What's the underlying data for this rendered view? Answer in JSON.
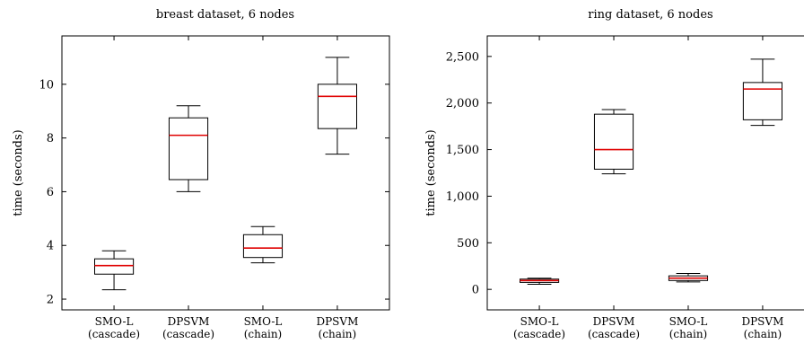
{
  "chart_data": [
    {
      "type": "box",
      "title": "breast dataset, 6 nodes",
      "ylabel": "time (seconds)",
      "ylim": [
        1.6,
        11.8
      ],
      "yticks": [
        {
          "value": 2,
          "label": "2"
        },
        {
          "value": 4,
          "label": "4"
        },
        {
          "value": 6,
          "label": "6"
        },
        {
          "value": 8,
          "label": "8"
        },
        {
          "value": 10,
          "label": "10"
        }
      ],
      "categories": [
        [
          "SMO-L",
          "(cascade)"
        ],
        [
          "DPSVM",
          "(cascade)"
        ],
        [
          "SMO-L",
          "(chain)"
        ],
        [
          "DPSVM",
          "(chain)"
        ]
      ],
      "boxes": [
        {
          "min": 2.35,
          "q1": 2.93,
          "median": 3.25,
          "q3": 3.5,
          "max": 3.8
        },
        {
          "min": 6.0,
          "q1": 6.45,
          "median": 8.1,
          "q3": 8.75,
          "max": 9.2
        },
        {
          "min": 3.35,
          "q1": 3.55,
          "median": 3.9,
          "q3": 4.4,
          "max": 4.7
        },
        {
          "min": 7.4,
          "q1": 8.35,
          "median": 9.55,
          "q3": 10.0,
          "max": 11.0
        }
      ]
    },
    {
      "type": "box",
      "title": "ring dataset, 6 nodes",
      "ylabel": "time (seconds)",
      "ylim": [
        -220,
        2720
      ],
      "yticks": [
        {
          "value": 0,
          "label": "0"
        },
        {
          "value": 500,
          "label": "500"
        },
        {
          "value": 1000,
          "label": "1,000"
        },
        {
          "value": 1500,
          "label": "1,500"
        },
        {
          "value": 2000,
          "label": "2,000"
        },
        {
          "value": 2500,
          "label": "2,500"
        }
      ],
      "categories": [
        [
          "SMO-L",
          "(cascade)"
        ],
        [
          "DPSVM",
          "(cascade)"
        ],
        [
          "SMO-L",
          "(chain)"
        ],
        [
          "DPSVM",
          "(chain)"
        ]
      ],
      "boxes": [
        {
          "min": 55,
          "q1": 75,
          "median": 95,
          "q3": 110,
          "max": 120
        },
        {
          "min": 1240,
          "q1": 1290,
          "median": 1500,
          "q3": 1880,
          "max": 1930
        },
        {
          "min": 80,
          "q1": 95,
          "median": 120,
          "q3": 145,
          "max": 170
        },
        {
          "min": 1760,
          "q1": 1820,
          "median": 2150,
          "q3": 2220,
          "max": 2470
        }
      ]
    }
  ]
}
